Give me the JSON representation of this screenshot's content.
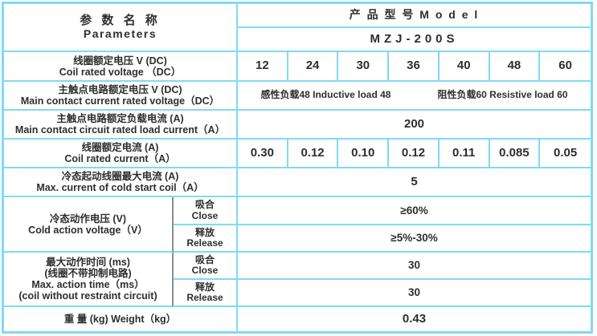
{
  "header": {
    "param_title_cn": "参  数  名  称",
    "param_title_en": "Parameters",
    "model_title": "产 品 型 号   M o d e l",
    "model_value": "MZJ-200S"
  },
  "rows": {
    "coil_voltage": {
      "label_cn": "线圈额定电压 V (DC)",
      "label_en": "Coil rated voltage （DC）",
      "values": [
        "12",
        "24",
        "30",
        "36",
        "40",
        "48",
        "60"
      ]
    },
    "contact_voltage": {
      "label_cn": "主触点电路额定电压 V (DC)",
      "label_en": "Main contact current rated voltage（DC）",
      "value_left": "感性负载48   Inductive load 48",
      "value_right": "阻性负载60   Resistive load 60"
    },
    "load_current": {
      "label_cn": "主触点电路额定负载电流 (A)",
      "label_en": "Main contact circuit rated load current（A）",
      "value": "200"
    },
    "coil_current": {
      "label_cn": "线圈额定电流 (A)",
      "label_en": "Coil rated current（A）",
      "values": [
        "0.30",
        "0.12",
        "0.10",
        "0.12",
        "0.11",
        "0.085",
        "0.05"
      ]
    },
    "cold_start": {
      "label_cn": "冷态起动线圈最大电流 (A)",
      "label_en": "Max. current of cold start coil（A）",
      "value": "5"
    },
    "cold_action": {
      "label_cn": "冷态动作电压 (V)",
      "label_en": "Cold action voltage（V）",
      "close_cn": "吸合",
      "close_en": "Close",
      "close_value": "≥60%",
      "release_cn": "释放",
      "release_en": "Release",
      "release_value": "≥5%-30%"
    },
    "max_action": {
      "label_cn1": "最大动作时间 (ms)",
      "label_cn2": "(线圈不带抑制电路)",
      "label_en1": "Max. action time（ms）",
      "label_en2": "(coil without restraint circuit)",
      "close_cn": "吸合",
      "close_en": "Close",
      "close_value": "30",
      "release_cn": "释放",
      "release_en": "Release",
      "release_value": "30"
    },
    "weight": {
      "label": "重  量 (kg)     Weight（kg）",
      "value": "0.43"
    }
  },
  "colors": {
    "grid_line": "#82d9f4",
    "gray_divider": "#8f8f8f",
    "text": "#2e2e2e"
  }
}
